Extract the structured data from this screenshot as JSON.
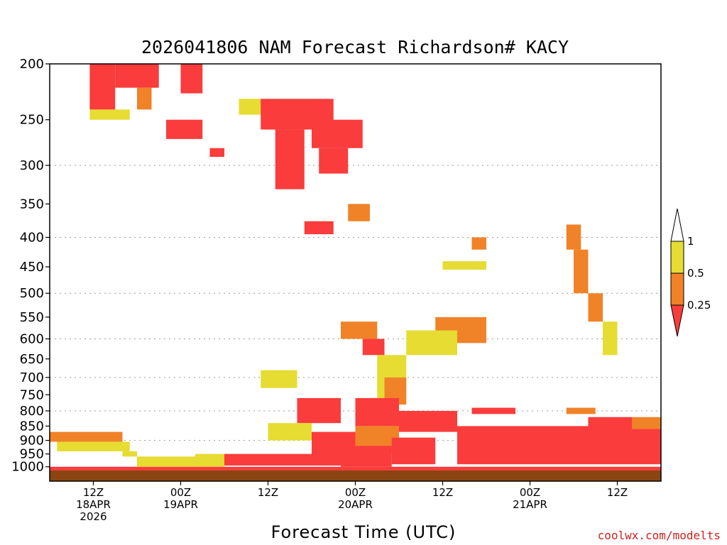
{
  "chart_data": {
    "type": "heatmap",
    "title": "2026041806 NAM Forecast Richardson# KACY",
    "xlabel": "Forecast Time (UTC)",
    "ylabel": "",
    "y_scale": "pressure (log-like, decreasing upward)",
    "y_axis": {
      "ticks": [
        200,
        250,
        300,
        350,
        400,
        450,
        500,
        550,
        600,
        650,
        700,
        750,
        800,
        850,
        900,
        950,
        1000
      ],
      "gridlines_at": [
        300,
        400,
        500,
        600,
        700,
        800,
        900
      ],
      "range": [
        1000,
        200
      ]
    },
    "x_axis": {
      "range_hours": [
        0,
        84
      ],
      "ticks": [
        {
          "hour": 6,
          "lines": [
            "12Z",
            "18APR",
            "2026"
          ]
        },
        {
          "hour": 18,
          "lines": [
            "00Z",
            "19APR"
          ]
        },
        {
          "hour": 30,
          "lines": [
            "12Z"
          ]
        },
        {
          "hour": 42,
          "lines": [
            "00Z",
            "20APR"
          ]
        },
        {
          "hour": 54,
          "lines": [
            "12Z"
          ]
        },
        {
          "hour": 66,
          "lines": [
            "00Z",
            "21APR"
          ]
        },
        {
          "hour": 78,
          "lines": [
            "12Z"
          ]
        }
      ]
    },
    "legend": {
      "placement": "right",
      "labels": [
        "1",
        "0.5",
        "0.25"
      ],
      "bins": [
        {
          "range": "> 1",
          "color": "#ffffff"
        },
        {
          "range": "0.5 - 1",
          "color": "#e6dc32"
        },
        {
          "range": "0.25 - 0.5",
          "color": "#f08228"
        },
        {
          "range": "< 0.25",
          "color": "#fa3c3c"
        }
      ]
    },
    "ground_color": "#8b4513",
    "regions": [
      {
        "t0": 0,
        "t1": 84,
        "p0": 1000,
        "p1": 1015,
        "bin": "lt025"
      },
      {
        "t0": 0,
        "t1": 10,
        "p0": 870,
        "p1": 905,
        "bin": "025_05"
      },
      {
        "t0": 1,
        "t1": 11,
        "p0": 905,
        "p1": 940,
        "bin": "05_1"
      },
      {
        "t0": 5.5,
        "t1": 11,
        "p0": 240,
        "p1": 250,
        "bin": "05_1"
      },
      {
        "t0": 5.5,
        "t1": 9,
        "p0": 200,
        "p1": 240,
        "bin": "lt025"
      },
      {
        "t0": 9,
        "t1": 15,
        "p0": 200,
        "p1": 220,
        "bin": "lt025"
      },
      {
        "t0": 12,
        "t1": 14,
        "p0": 220,
        "p1": 240,
        "bin": "025_05"
      },
      {
        "t0": 18,
        "t1": 21,
        "p0": 200,
        "p1": 225,
        "bin": "lt025"
      },
      {
        "t0": 16,
        "t1": 21,
        "p0": 250,
        "p1": 270,
        "bin": "lt025"
      },
      {
        "t0": 22,
        "t1": 24,
        "p0": 280,
        "p1": 290,
        "bin": "lt025"
      },
      {
        "t0": 26,
        "t1": 30,
        "p0": 230,
        "p1": 245,
        "bin": "05_1"
      },
      {
        "t0": 29,
        "t1": 39,
        "p0": 230,
        "p1": 260,
        "bin": "lt025"
      },
      {
        "t0": 31,
        "t1": 35,
        "p0": 260,
        "p1": 330,
        "bin": "lt025"
      },
      {
        "t0": 36,
        "t1": 43,
        "p0": 250,
        "p1": 280,
        "bin": "lt025"
      },
      {
        "t0": 37,
        "t1": 41,
        "p0": 280,
        "p1": 310,
        "bin": "lt025"
      },
      {
        "t0": 35,
        "t1": 39,
        "p0": 375,
        "p1": 395,
        "bin": "lt025"
      },
      {
        "t0": 41,
        "t1": 44,
        "p0": 350,
        "p1": 375,
        "bin": "025_05"
      },
      {
        "t0": 54,
        "t1": 60,
        "p0": 440,
        "p1": 455,
        "bin": "05_1"
      },
      {
        "t0": 58,
        "t1": 60,
        "p0": 400,
        "p1": 420,
        "bin": "025_05"
      },
      {
        "t0": 71,
        "t1": 73,
        "p0": 380,
        "p1": 420,
        "bin": "025_05"
      },
      {
        "t0": 72,
        "t1": 74,
        "p0": 420,
        "p1": 500,
        "bin": "025_05"
      },
      {
        "t0": 74,
        "t1": 76,
        "p0": 500,
        "p1": 560,
        "bin": "025_05"
      },
      {
        "t0": 76,
        "t1": 78,
        "p0": 560,
        "p1": 640,
        "bin": "05_1"
      },
      {
        "t0": 53,
        "t1": 60,
        "p0": 550,
        "p1": 610,
        "bin": "025_05"
      },
      {
        "t0": 49,
        "t1": 56,
        "p0": 580,
        "p1": 640,
        "bin": "05_1"
      },
      {
        "t0": 40,
        "t1": 45,
        "p0": 560,
        "p1": 600,
        "bin": "025_05"
      },
      {
        "t0": 43,
        "t1": 46,
        "p0": 600,
        "p1": 640,
        "bin": "lt025"
      },
      {
        "t0": 45,
        "t1": 49,
        "p0": 640,
        "p1": 760,
        "bin": "05_1"
      },
      {
        "t0": 46,
        "t1": 49,
        "p0": 700,
        "p1": 780,
        "bin": "025_05"
      },
      {
        "t0": 29,
        "t1": 34,
        "p0": 680,
        "p1": 730,
        "bin": "05_1"
      },
      {
        "t0": 34,
        "t1": 40,
        "p0": 760,
        "p1": 840,
        "bin": "lt025"
      },
      {
        "t0": 30,
        "t1": 36,
        "p0": 840,
        "p1": 900,
        "bin": "05_1"
      },
      {
        "t0": 36,
        "t1": 42,
        "p0": 870,
        "p1": 960,
        "bin": "lt025"
      },
      {
        "t0": 42,
        "t1": 48,
        "p0": 760,
        "p1": 850,
        "bin": "lt025"
      },
      {
        "t0": 48,
        "t1": 56,
        "p0": 800,
        "p1": 870,
        "bin": "lt025"
      },
      {
        "t0": 42,
        "t1": 48,
        "p0": 850,
        "p1": 950,
        "bin": "025_05"
      },
      {
        "t0": 40,
        "t1": 47,
        "p0": 920,
        "p1": 1000,
        "bin": "lt025"
      },
      {
        "t0": 47,
        "t1": 53,
        "p0": 890,
        "p1": 990,
        "bin": "lt025"
      },
      {
        "t0": 56,
        "t1": 84,
        "p0": 850,
        "p1": 990,
        "bin": "lt025"
      },
      {
        "t0": 58,
        "t1": 64,
        "p0": 790,
        "p1": 810,
        "bin": "lt025"
      },
      {
        "t0": 71,
        "t1": 75,
        "p0": 790,
        "p1": 810,
        "bin": "025_05"
      },
      {
        "t0": 74,
        "t1": 80,
        "p0": 820,
        "p1": 870,
        "bin": "lt025"
      },
      {
        "t0": 80,
        "t1": 84,
        "p0": 820,
        "p1": 860,
        "bin": "025_05"
      },
      {
        "t0": 12,
        "t1": 24,
        "p0": 960,
        "p1": 1000,
        "bin": "05_1"
      },
      {
        "t0": 24,
        "t1": 40,
        "p0": 950,
        "p1": 995,
        "bin": "lt025"
      },
      {
        "t0": 10,
        "t1": 12,
        "p0": 940,
        "p1": 960,
        "bin": "05_1"
      },
      {
        "t0": 20,
        "t1": 24,
        "p0": 950,
        "p1": 970,
        "bin": "05_1"
      }
    ]
  },
  "credit": "coolwx.com/modelts"
}
